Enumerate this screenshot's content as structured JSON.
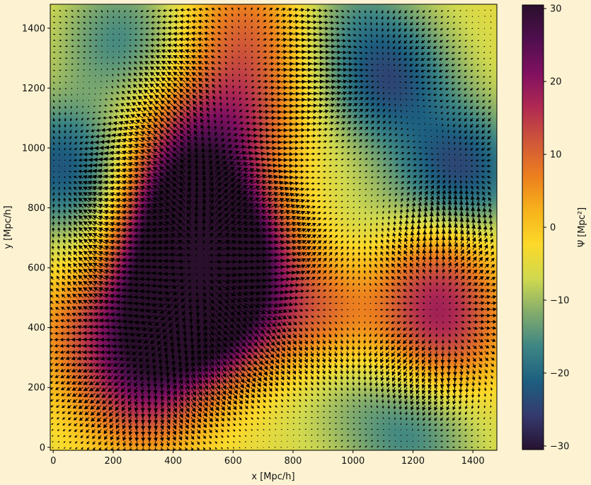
{
  "chart_data": {
    "type": "heatmap",
    "subtype": "potential field with quiver (gradient arrows)",
    "title": "",
    "xlabel": "x [Mpc/h]",
    "ylabel": "y [Mpc/h]",
    "xlim": [
      -10,
      1480
    ],
    "ylim": [
      -10,
      1480
    ],
    "x_ticks": [
      0,
      200,
      400,
      600,
      800,
      1000,
      1200,
      1400
    ],
    "y_ticks": [
      0,
      200,
      400,
      600,
      800,
      1000,
      1200,
      1400
    ],
    "x_tick_labels": [
      "0",
      "200",
      "400",
      "600",
      "800",
      "1000",
      "1200",
      "1400"
    ],
    "y_tick_labels": [
      "0",
      "200",
      "400",
      "600",
      "800",
      "1000",
      "1200",
      "1400"
    ],
    "colorbar": {
      "label": "Ψ [Mpc²]",
      "range": [
        -30.5,
        30.5
      ],
      "ticks": [
        -30,
        -20,
        -10,
        0,
        10,
        20,
        30
      ],
      "tick_labels": [
        "−30",
        "−20",
        "−10",
        "0",
        "10",
        "20",
        "30"
      ],
      "colormap": [
        "#271231",
        "#353a6e",
        "#1d5f80",
        "#3c8584",
        "#83ac6c",
        "#d0d94f",
        "#fcd92a",
        "#f7b21b",
        "#ec7f1f",
        "#d05739",
        "#b02a52",
        "#811061",
        "#4f0f4e",
        "#2a0f2c"
      ]
    },
    "field_extrema": [
      {
        "x": 560,
        "y": 660,
        "value": 30
      },
      {
        "x": 520,
        "y": 420,
        "value": 24
      },
      {
        "x": 440,
        "y": 780,
        "value": 20
      },
      {
        "x": 380,
        "y": 560,
        "value": 16
      },
      {
        "x": 470,
        "y": 980,
        "value": 12
      },
      {
        "x": 620,
        "y": 1120,
        "value": 9
      },
      {
        "x": 300,
        "y": 180,
        "value": 12
      },
      {
        "x": 300,
        "y": 360,
        "value": 8
      },
      {
        "x": 1300,
        "y": 380,
        "value": 12
      },
      {
        "x": 1260,
        "y": 600,
        "value": 9
      },
      {
        "x": 880,
        "y": 450,
        "value": 9
      },
      {
        "x": 640,
        "y": 1400,
        "value": 8
      },
      {
        "x": 80,
        "y": 400,
        "value": 4
      },
      {
        "x": 1120,
        "y": 1220,
        "value": -22
      },
      {
        "x": 1360,
        "y": 920,
        "value": -24
      },
      {
        "x": 30,
        "y": 940,
        "value": -22
      },
      {
        "x": 230,
        "y": 1360,
        "value": -16
      },
      {
        "x": 1000,
        "y": 1440,
        "value": -12
      },
      {
        "x": 1200,
        "y": 50,
        "value": -16
      },
      {
        "x": 960,
        "y": 200,
        "value": -10
      },
      {
        "x": 1100,
        "y": 700,
        "value": -10
      },
      {
        "x": 150,
        "y": 700,
        "value": -8
      }
    ],
    "field_base": -5,
    "quiver": {
      "grid_step": 20,
      "style": "black arrows along -∇Ψ"
    }
  }
}
